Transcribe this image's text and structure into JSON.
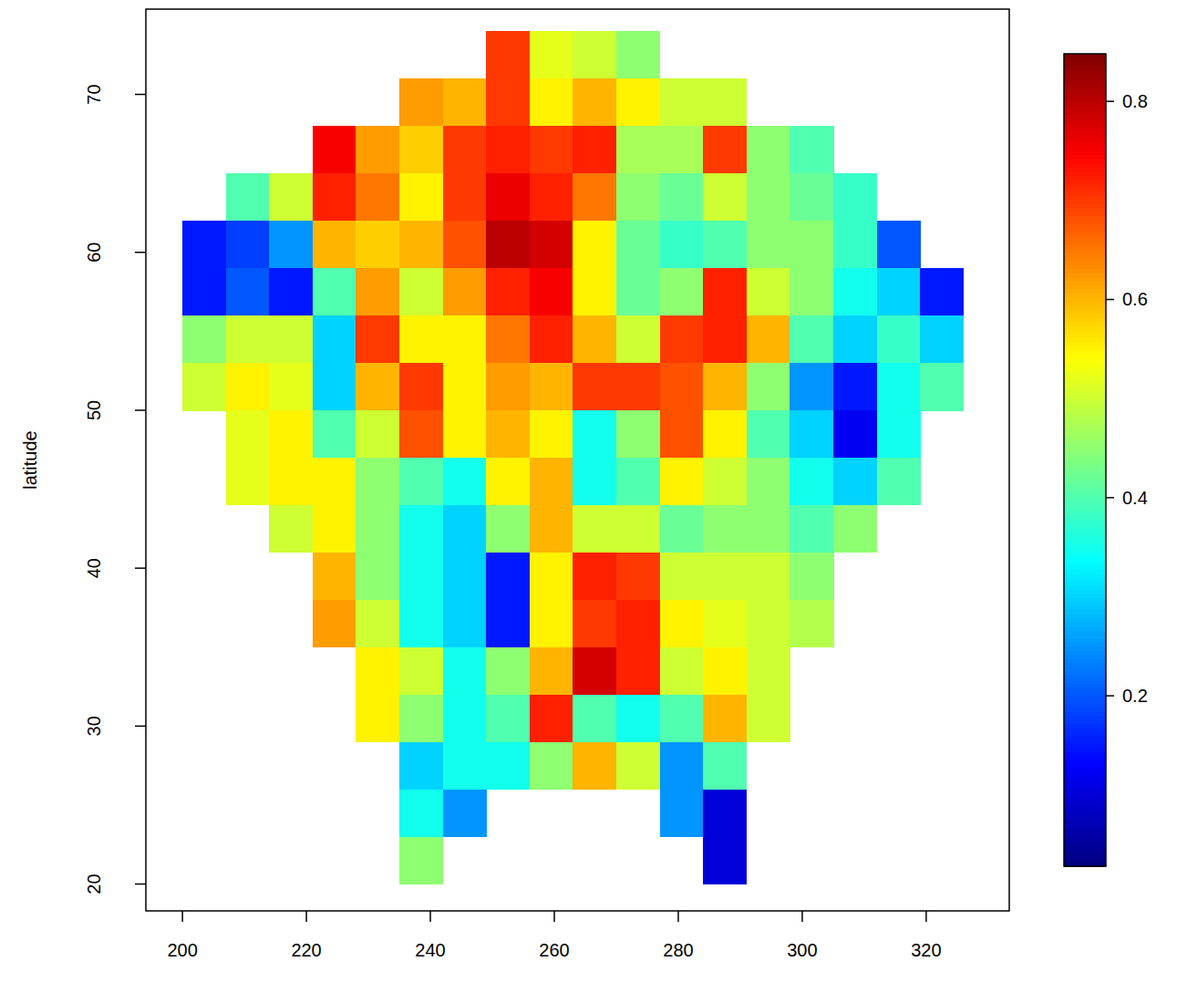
{
  "chart_data": {
    "type": "heatmap",
    "y_label": "latitude",
    "xlim": [
      194.1,
      333.4
    ],
    "ylim": [
      18.3,
      75.4
    ],
    "xticks": [
      200,
      220,
      240,
      260,
      280,
      300,
      320
    ],
    "yticks": [
      20,
      30,
      40,
      50,
      60,
      70
    ],
    "x": [
      203.5,
      210.5,
      217.5,
      224.5,
      231.5,
      238.5,
      245.5,
      252.5,
      259.5,
      266.5,
      273.5,
      280.5,
      287.5,
      294.5,
      301.5,
      308.5,
      315.5,
      322.5
    ],
    "y": [
      72.5,
      69.5,
      66.5,
      63.5,
      60.5,
      57.5,
      54.5,
      51.5,
      48.5,
      45.5,
      42.5,
      39.5,
      36.5,
      33.5,
      30.5,
      27.5,
      24.5,
      21.5
    ],
    "z": [
      [
        null,
        null,
        null,
        null,
        null,
        null,
        null,
        0.7,
        0.52,
        0.5,
        0.45,
        null,
        null,
        null,
        null,
        null,
        null,
        null
      ],
      [
        null,
        null,
        null,
        null,
        null,
        0.62,
        0.6,
        0.7,
        0.55,
        0.6,
        0.55,
        0.5,
        0.5,
        null,
        null,
        null,
        null,
        null
      ],
      [
        null,
        null,
        null,
        0.75,
        0.62,
        0.58,
        0.7,
        0.72,
        0.7,
        0.72,
        0.47,
        0.47,
        0.7,
        0.45,
        0.4,
        null,
        null,
        null
      ],
      [
        null,
        0.4,
        0.5,
        0.72,
        0.65,
        0.55,
        0.7,
        0.76,
        0.72,
        0.65,
        0.45,
        0.42,
        0.5,
        0.45,
        0.42,
        0.38,
        null,
        null
      ],
      [
        0.15,
        0.18,
        0.25,
        0.6,
        0.58,
        0.6,
        0.68,
        0.8,
        0.78,
        0.55,
        0.42,
        0.38,
        0.4,
        0.45,
        0.45,
        0.38,
        0.2,
        null
      ],
      [
        0.15,
        0.2,
        0.15,
        0.4,
        0.62,
        0.5,
        0.62,
        0.72,
        0.75,
        0.55,
        0.42,
        0.45,
        0.72,
        0.5,
        0.45,
        0.35,
        0.3,
        0.15
      ],
      [
        0.45,
        0.5,
        0.5,
        0.3,
        0.7,
        0.55,
        0.55,
        0.65,
        0.72,
        0.6,
        0.5,
        0.7,
        0.72,
        0.6,
        0.4,
        0.3,
        0.38,
        0.3
      ],
      [
        0.5,
        0.55,
        0.52,
        0.3,
        0.6,
        0.7,
        0.55,
        0.62,
        0.6,
        0.7,
        0.7,
        0.68,
        0.6,
        0.45,
        0.25,
        0.15,
        0.35,
        0.4
      ],
      [
        null,
        0.52,
        0.55,
        0.4,
        0.5,
        0.68,
        0.55,
        0.6,
        0.55,
        0.35,
        0.45,
        0.68,
        0.55,
        0.4,
        0.3,
        0.12,
        0.35,
        null
      ],
      [
        null,
        0.52,
        0.55,
        0.55,
        0.45,
        0.4,
        0.35,
        0.55,
        0.6,
        0.35,
        0.4,
        0.55,
        0.5,
        0.45,
        0.35,
        0.3,
        0.4,
        null
      ],
      [
        null,
        null,
        0.5,
        0.55,
        0.45,
        0.35,
        0.3,
        0.45,
        0.6,
        0.5,
        0.5,
        0.42,
        0.45,
        0.45,
        0.4,
        0.45,
        null,
        null
      ],
      [
        null,
        null,
        null,
        0.6,
        0.45,
        0.35,
        0.3,
        0.15,
        0.55,
        0.72,
        0.7,
        0.5,
        0.5,
        0.5,
        0.45,
        null,
        null,
        null
      ],
      [
        null,
        null,
        null,
        0.62,
        0.5,
        0.35,
        0.3,
        0.15,
        0.55,
        0.7,
        0.72,
        0.55,
        0.52,
        0.5,
        0.48,
        null,
        null,
        null
      ],
      [
        null,
        null,
        null,
        null,
        0.55,
        0.5,
        0.35,
        0.45,
        0.6,
        0.78,
        0.72,
        0.5,
        0.55,
        0.5,
        null,
        null,
        null,
        null
      ],
      [
        null,
        null,
        null,
        null,
        0.55,
        0.45,
        0.35,
        0.4,
        0.72,
        0.4,
        0.35,
        0.4,
        0.6,
        0.5,
        null,
        null,
        null,
        null
      ],
      [
        null,
        null,
        null,
        null,
        null,
        0.3,
        0.35,
        0.35,
        0.45,
        0.6,
        0.5,
        0.25,
        0.4,
        null,
        null,
        null,
        null,
        null
      ],
      [
        null,
        null,
        null,
        null,
        null,
        0.35,
        0.25,
        null,
        null,
        null,
        null,
        0.25,
        0.1,
        null,
        null,
        null,
        null,
        null
      ],
      [
        null,
        null,
        null,
        null,
        null,
        0.45,
        null,
        null,
        null,
        null,
        null,
        null,
        0.1,
        null,
        null,
        null,
        null,
        null
      ]
    ],
    "colorbar": {
      "lim": [
        0.028,
        0.848
      ],
      "ticks": [
        0.2,
        0.4,
        0.6,
        0.8
      ]
    }
  }
}
